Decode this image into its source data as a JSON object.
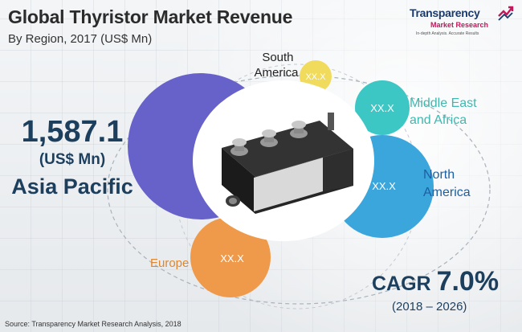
{
  "title": "Global Thyristor Market Revenue",
  "subtitle": "By Region, 2017 (US$ Mn)",
  "logo": {
    "name": "Transparency",
    "sub": "Market Research",
    "tagline": "In-depth Analysis. Accurate Results"
  },
  "highlight": {
    "value": "1,587.1",
    "unit": "(US$ Mn)",
    "region": "Asia Pacific"
  },
  "cagr": {
    "label": "CAGR",
    "value": "7.0%",
    "range": "(2018 – 2026)"
  },
  "source": "Source: Transparency Market Research Analysis, 2018",
  "chart_data": {
    "type": "bubble",
    "title": "Global Thyristor Market Revenue",
    "subtitle": "By Region, 2017 (US$ Mn)",
    "series": [
      {
        "region": "Asia Pacific",
        "value": 1587.1,
        "label": "1,587.1",
        "color": "#6762c9"
      },
      {
        "region": "North America",
        "value": null,
        "label": "XX.X",
        "color": "#3ba6dc"
      },
      {
        "region": "Europe",
        "value": null,
        "label": "XX.X",
        "color": "#ef9a4a"
      },
      {
        "region": "Middle East and Africa",
        "value": null,
        "label": "XX.X",
        "color": "#3cc6c4"
      },
      {
        "region": "South America",
        "value": null,
        "label": "XX.X",
        "color": "#f1db5c"
      }
    ]
  }
}
